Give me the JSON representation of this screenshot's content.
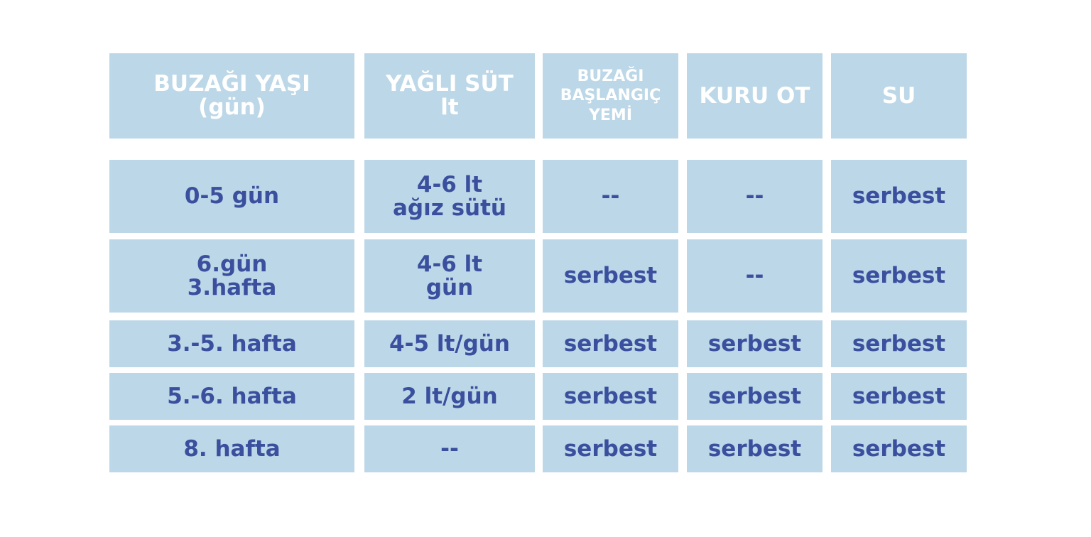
{
  "table": {
    "headers": [
      [
        "BUZAĞI YAŞI",
        "(gün)"
      ],
      [
        "YAĞLI SÜT",
        "lt"
      ],
      [
        "BUZAĞI",
        "BAŞLANGIÇ",
        "YEMİ"
      ],
      [
        "KURU OT"
      ],
      [
        "SU"
      ]
    ],
    "rows": [
      [
        [
          "0-5 gün"
        ],
        [
          "4-6 lt",
          "ağız sütü"
        ],
        [
          "--"
        ],
        [
          "--"
        ],
        [
          "serbest"
        ]
      ],
      [
        [
          "6.gün",
          "3.hafta"
        ],
        [
          "4-6 lt",
          "gün"
        ],
        [
          "serbest"
        ],
        [
          "--"
        ],
        [
          "serbest"
        ]
      ],
      [
        [
          "3.-5. hafta"
        ],
        [
          "4-5 lt/gün"
        ],
        [
          "serbest"
        ],
        [
          "serbest"
        ],
        [
          "serbest"
        ]
      ],
      [
        [
          "5.-6. hafta"
        ],
        [
          "2 lt/gün"
        ],
        [
          "serbest"
        ],
        [
          "serbest"
        ],
        [
          "serbest"
        ]
      ],
      [
        [
          "8. hafta"
        ],
        [
          "--"
        ],
        [
          "serbest"
        ],
        [
          "serbest"
        ],
        [
          "serbest"
        ]
      ]
    ]
  }
}
